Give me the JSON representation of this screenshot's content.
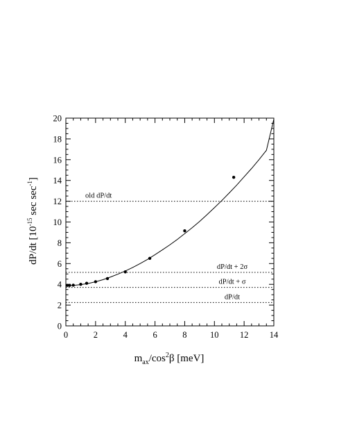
{
  "chart_data": {
    "type": "line",
    "xlabel_parts": {
      "base": "m",
      "sub": "ax",
      "mid": "/cos",
      "sup": "2",
      "tail": "β [meV]"
    },
    "ylabel_parts": {
      "base": "dP/dt  [10",
      "sup": "-15",
      "tail": " sec sec",
      "sup2": "-1",
      "end": "]"
    },
    "xlim": [
      0,
      14
    ],
    "ylim": [
      0,
      20
    ],
    "x_ticks": [
      0,
      2,
      4,
      6,
      8,
      10,
      12,
      14
    ],
    "y_ticks": [
      0,
      2,
      4,
      6,
      8,
      10,
      12,
      14,
      16,
      18,
      20
    ],
    "x_tick_labels": [
      "0",
      "2",
      "4",
      "6",
      "8",
      "10",
      "12",
      "14"
    ],
    "y_tick_labels": [
      "0",
      "2",
      "4",
      "6",
      "8",
      "10",
      "12",
      "14",
      "16",
      "18",
      "20"
    ],
    "grid": false,
    "series": [
      {
        "style": "points",
        "x": [
          0.1,
          0.25,
          0.5,
          1.0,
          1.4,
          2.0,
          2.8,
          4.0,
          5.65,
          8.0,
          11.3
        ],
        "y": [
          3.9,
          3.9,
          3.92,
          4.0,
          4.1,
          4.25,
          4.55,
          5.2,
          6.5,
          9.15,
          14.3
        ]
      },
      {
        "style": "curve",
        "x": [
          0,
          0.5,
          1,
          1.5,
          2,
          2.5,
          3,
          3.5,
          4,
          4.5,
          5,
          5.5,
          6,
          6.5,
          7,
          7.5,
          8,
          8.5,
          9,
          9.5,
          10,
          10.5,
          11,
          11.5,
          12,
          12.5,
          13,
          13.5,
          14
        ],
        "y": [
          3.87,
          3.9,
          3.97,
          4.08,
          4.25,
          4.45,
          4.7,
          4.98,
          5.28,
          5.62,
          6.0,
          6.4,
          6.85,
          7.32,
          7.8,
          8.32,
          8.88,
          9.45,
          10.05,
          10.7,
          11.38,
          12.07,
          12.8,
          13.55,
          14.35,
          15.15,
          16.0,
          16.9,
          19.9
        ]
      }
    ],
    "reference_lines": [
      {
        "y": 12.0,
        "label": "old dP/dt",
        "label_side": "left"
      },
      {
        "y": 5.15,
        "label": "dP/dt + 2σ",
        "label_side": "right"
      },
      {
        "y": 3.7,
        "label": "dP/dt + σ",
        "label_side": "right"
      },
      {
        "y": 2.25,
        "label": "dP/dt",
        "label_side": "right"
      }
    ]
  }
}
